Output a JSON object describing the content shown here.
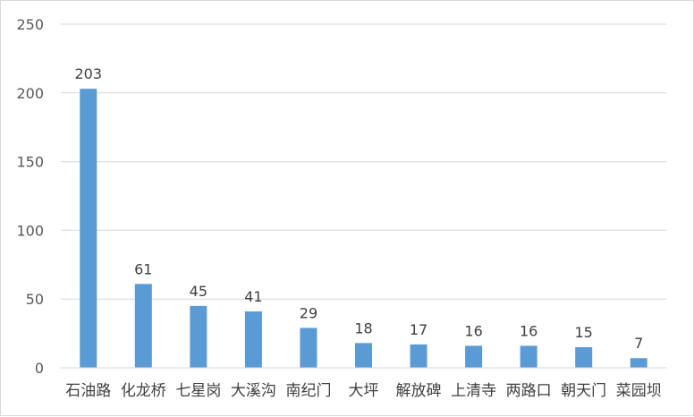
{
  "chart_data": {
    "type": "bar",
    "title": "",
    "xlabel": "",
    "ylabel": "",
    "categories": [
      "石油路",
      "化龙桥",
      "七星岗",
      "大溪沟",
      "南纪门",
      "大坪",
      "解放碑",
      "上清寺",
      "两路口",
      "朝天门",
      "菜园坝"
    ],
    "values": [
      203,
      61,
      45,
      41,
      29,
      18,
      17,
      16,
      16,
      15,
      7
    ],
    "ylim": [
      0,
      250
    ],
    "yticks": [
      0,
      50,
      100,
      150,
      200,
      250
    ],
    "grid": true,
    "legend": "none",
    "bar_color": "#5b9bd5",
    "grid_color": "#d9d9d9"
  }
}
